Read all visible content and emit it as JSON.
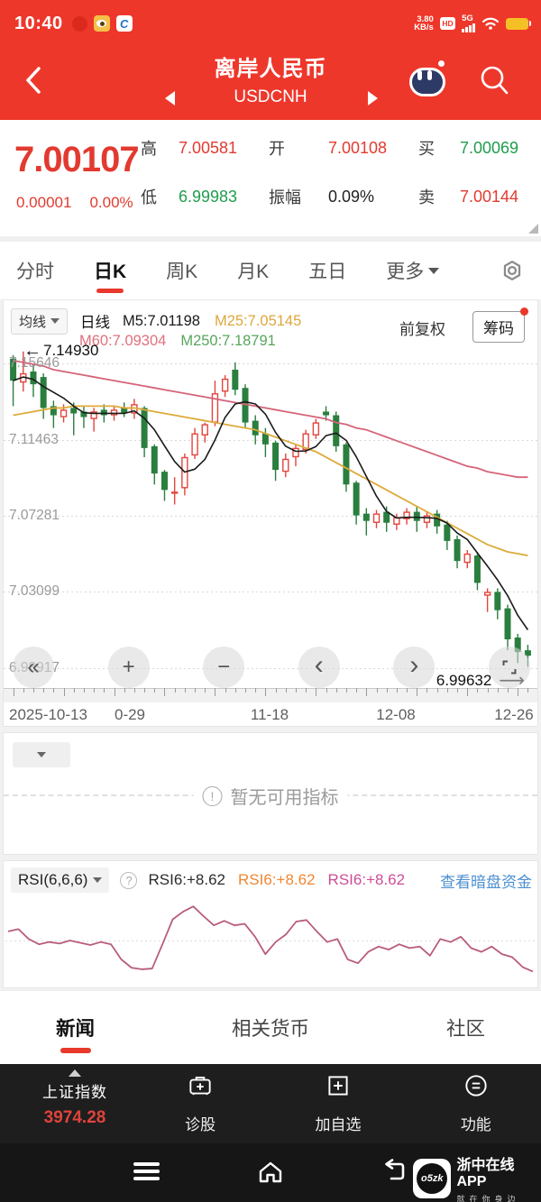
{
  "status_bar": {
    "time": "10:40",
    "speed_top": "3.80",
    "speed_bottom": "KB/s",
    "hd": "HD",
    "network": "5G"
  },
  "header": {
    "title": "离岸人民币",
    "subtitle": "USDCNH"
  },
  "quote": {
    "price": "7.00107",
    "change": "0.00001",
    "change_pct": "0.00%",
    "fields": [
      {
        "label": "高",
        "value": "7.00581",
        "color": "red"
      },
      {
        "label": "开",
        "value": "7.00108",
        "color": "red"
      },
      {
        "label": "买",
        "value": "7.00069",
        "color": "green"
      },
      {
        "label": "低",
        "value": "6.99983",
        "color": "green"
      },
      {
        "label": "振幅",
        "value": "0.09%",
        "color": "dark"
      },
      {
        "label": "卖",
        "value": "7.00144",
        "color": "red"
      }
    ]
  },
  "chart_tabs": {
    "items": [
      "分时",
      "日K",
      "周K",
      "月K",
      "五日"
    ],
    "active": 1,
    "more_label": "更多"
  },
  "legend": {
    "selector": "均线",
    "period": "日线",
    "items": [
      {
        "label": "M5:7.01198",
        "color": "#1a1a1a"
      },
      {
        "label": "M25:7.05145",
        "color": "#dfa63e"
      },
      {
        "label": "M60:7.09304",
        "color": "#e0707c"
      },
      {
        "label": "M250:7.18791",
        "color": "#57a65b"
      }
    ],
    "adjust": "前复权",
    "chips": "筹码"
  },
  "annotations": {
    "left_price": "7.14930",
    "right_price": "6.99632"
  },
  "indicator_panel": {
    "empty_text": "暂无可用指标",
    "info_glyph": "!"
  },
  "rsi_panel": {
    "selector": "RSI(6,6,6)",
    "help_glyph": "?",
    "values": [
      {
        "label": "RSI6:+8.62",
        "color": "#2b2b2b"
      },
      {
        "label": "RSI6:+8.62",
        "color": "#ed8733"
      },
      {
        "label": "RSI6:+8.62",
        "color": "#cc4d96"
      }
    ],
    "link": "查看暗盘资金"
  },
  "content_tabs": {
    "items": [
      "新闻",
      "相关货币",
      "社区"
    ],
    "active": 0
  },
  "toolbar": {
    "index_name": "上证指数",
    "index_value": "3974.28",
    "actions": [
      {
        "label": "诊股",
        "icon": "briefcase-plus-icon"
      },
      {
        "label": "加自选",
        "icon": "square-plus-icon"
      },
      {
        "label": "功能",
        "icon": "circle-menu-icon"
      }
    ]
  },
  "nav_footer": {
    "logo_text": "o5zk",
    "app_name": "浙中在线APP",
    "app_slogan": "就在你身边"
  },
  "chart_controls": [
    "rewind",
    "zoom-in",
    "zoom-out",
    "prev",
    "next",
    "fullscreen"
  ],
  "chart_data": {
    "type": "candlestick",
    "title": "USDCNH 日K",
    "y_gridlines": [
      7.15646,
      7.11463,
      7.07281,
      7.03099,
      6.98917
    ],
    "y_labels": [
      "7.15646",
      "7.11463",
      "7.07281",
      "7.03099",
      "6.98917"
    ],
    "x_labels": [
      "2025-10-13",
      "0-29",
      "11-18",
      "12-08",
      "12-26"
    ],
    "current_price": 6.99632,
    "left_edge_price": 7.1493,
    "colors": {
      "up": "#e2453c",
      "down": "#2a7e3e",
      "ma5": "#1a1a1a",
      "ma25": "#ddab3a",
      "ma60": "#d5647a",
      "rsi": "#b85c7e"
    },
    "ma_values": {
      "M5": 7.01198,
      "M25": 7.05145,
      "M60": 7.09304,
      "M250": 7.18791
    },
    "candles": [
      [
        7.159,
        7.161,
        7.133,
        7.147
      ],
      [
        7.146,
        7.163,
        7.141,
        7.151
      ],
      [
        7.152,
        7.156,
        7.138,
        7.145
      ],
      [
        7.149,
        7.151,
        7.126,
        7.132
      ],
      [
        7.133,
        7.136,
        7.121,
        7.128
      ],
      [
        7.127,
        7.134,
        7.124,
        7.131
      ],
      [
        7.132,
        7.135,
        7.117,
        7.129
      ],
      [
        7.13,
        7.133,
        7.121,
        7.127
      ],
      [
        7.126,
        7.132,
        7.119,
        7.13
      ],
      [
        7.131,
        7.134,
        7.124,
        7.128
      ],
      [
        7.128,
        7.133,
        7.125,
        7.131
      ],
      [
        7.132,
        7.135,
        7.127,
        7.129
      ],
      [
        7.129,
        7.137,
        7.126,
        7.134
      ],
      [
        7.132,
        7.133,
        7.105,
        7.11
      ],
      [
        7.111,
        7.112,
        7.09,
        7.096
      ],
      [
        7.097,
        7.098,
        7.081,
        7.087
      ],
      [
        7.085,
        7.094,
        7.079,
        7.086
      ],
      [
        7.088,
        7.107,
        7.084,
        7.105
      ],
      [
        7.106,
        7.121,
        7.104,
        7.118
      ],
      [
        7.117,
        7.124,
        7.113,
        7.123
      ],
      [
        7.124,
        7.147,
        7.122,
        7.14
      ],
      [
        7.141,
        7.15,
        7.138,
        7.148
      ],
      [
        7.153,
        7.157,
        7.139,
        7.142
      ],
      [
        7.143,
        7.145,
        7.121,
        7.124
      ],
      [
        7.125,
        7.128,
        7.112,
        7.117
      ],
      [
        7.118,
        7.121,
        7.105,
        7.112
      ],
      [
        7.113,
        7.114,
        7.092,
        7.098
      ],
      [
        7.097,
        7.107,
        7.094,
        7.104
      ],
      [
        7.105,
        7.112,
        7.1,
        7.11
      ],
      [
        7.109,
        7.12,
        7.107,
        7.118
      ],
      [
        7.117,
        7.126,
        7.115,
        7.124
      ],
      [
        7.13,
        7.133,
        7.125,
        7.128
      ],
      [
        7.128,
        7.13,
        7.108,
        7.111
      ],
      [
        7.112,
        7.113,
        7.086,
        7.09
      ],
      [
        7.091,
        7.092,
        7.068,
        7.073
      ],
      [
        7.074,
        7.077,
        7.062,
        7.07
      ],
      [
        7.069,
        7.076,
        7.066,
        7.074
      ],
      [
        7.075,
        7.078,
        7.064,
        7.069
      ],
      [
        7.068,
        7.074,
        7.065,
        7.072
      ],
      [
        7.071,
        7.077,
        7.068,
        7.075
      ],
      [
        7.075,
        7.078,
        7.064,
        7.07
      ],
      [
        7.069,
        7.075,
        7.066,
        7.073
      ],
      [
        7.074,
        7.076,
        7.063,
        7.067
      ],
      [
        7.068,
        7.07,
        7.054,
        7.059
      ],
      [
        7.06,
        7.062,
        7.044,
        7.048
      ],
      [
        7.047,
        7.054,
        7.044,
        7.052
      ],
      [
        7.051,
        7.053,
        7.032,
        7.036
      ],
      [
        7.029,
        7.033,
        7.02,
        7.031
      ],
      [
        7.031,
        7.033,
        7.016,
        7.021
      ],
      [
        7.022,
        7.024,
        6.999,
        7.005
      ],
      [
        7.006,
        7.008,
        6.992,
        6.998
      ],
      [
        6.999,
        7.002,
        6.99,
        6.996
      ]
    ],
    "ma25": [
      7.128,
      7.129,
      7.13,
      7.131,
      7.132,
      7.132,
      7.133,
      7.133,
      7.133,
      7.133,
      7.133,
      7.132,
      7.132,
      7.131,
      7.13,
      7.129,
      7.128,
      7.127,
      7.126,
      7.125,
      7.124,
      7.123,
      7.122,
      7.121,
      7.12,
      7.118,
      7.116,
      7.114,
      7.112,
      7.11,
      7.108,
      7.105,
      7.102,
      7.099,
      7.096,
      7.093,
      7.09,
      7.087,
      7.084,
      7.081,
      7.078,
      7.075,
      7.072,
      7.069,
      7.066,
      7.063,
      7.06,
      7.057,
      7.055,
      7.053,
      7.052,
      7.051
    ],
    "ma60": [
      7.158,
      7.157,
      7.156,
      7.155,
      7.153,
      7.152,
      7.151,
      7.15,
      7.149,
      7.148,
      7.147,
      7.146,
      7.145,
      7.144,
      7.143,
      7.142,
      7.141,
      7.14,
      7.139,
      7.138,
      7.137,
      7.136,
      7.135,
      7.134,
      7.133,
      7.132,
      7.131,
      7.13,
      7.129,
      7.128,
      7.127,
      7.126,
      7.124,
      7.123,
      7.121,
      7.12,
      7.118,
      7.116,
      7.114,
      7.112,
      7.11,
      7.108,
      7.106,
      7.104,
      7.102,
      7.1,
      7.099,
      7.097,
      7.096,
      7.095,
      7.094,
      7.094
    ],
    "rsi": {
      "type": "line",
      "range": [
        0,
        100
      ],
      "current": 8.62,
      "values": [
        62,
        65,
        52,
        45,
        48,
        46,
        50,
        47,
        44,
        48,
        45,
        25,
        14,
        12,
        13,
        45,
        78,
        88,
        95,
        82,
        70,
        76,
        70,
        72,
        55,
        32,
        48,
        58,
        75,
        77,
        62,
        48,
        52,
        25,
        20,
        35,
        42,
        38,
        45,
        40,
        42,
        30,
        52,
        48,
        55,
        40,
        35,
        42,
        32,
        28,
        15,
        9
      ]
    }
  }
}
